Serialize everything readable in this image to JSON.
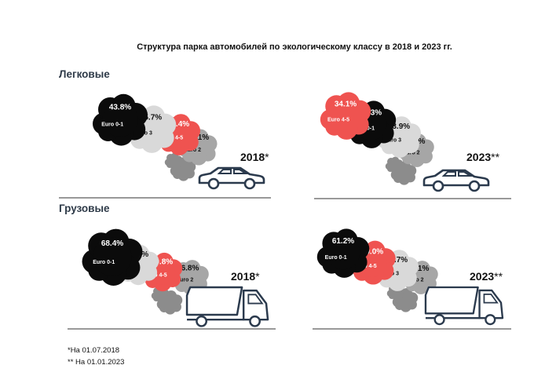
{
  "title": "Структура парка автомобилей по экологическому классу в 2018 и 2023 гг.",
  "sections": [
    {
      "label": "Легковые"
    },
    {
      "label": "Грузовые"
    }
  ],
  "colors": {
    "Euro 0-1": "#0b0b0b",
    "Euro 3": "#d9d9d9",
    "Euro 4-5": "#ef5350",
    "Euro 2": "#a6a6a6",
    "exhaust": "#8c8c8c",
    "vehicle_stroke": "#2b3a4d"
  },
  "chart_data": [
    {
      "type": "pie",
      "group": "Легковые",
      "year": "2018",
      "mark": "*",
      "vehicle": "car-icon",
      "slices": [
        {
          "label": "Euro 0-1",
          "value": 43.8,
          "value_text": "43.8%"
        },
        {
          "label": "Euro 3",
          "value": 25.7,
          "value_text": "25.7%"
        },
        {
          "label": "Euro 4-5",
          "value": 20.4,
          "value_text": "20.4%"
        },
        {
          "label": "Euro 2",
          "value": 10.1,
          "value_text": "10.1%"
        }
      ]
    },
    {
      "type": "pie",
      "group": "Легковые",
      "year": "2023",
      "mark": "**",
      "vehicle": "car-icon",
      "slices": [
        {
          "label": "Euro 4-5",
          "value": 34.1,
          "value_text": "34.1%"
        },
        {
          "label": "Euro 0-1",
          "value": 33.3,
          "value_text": "33.3%"
        },
        {
          "label": "Euro 3",
          "value": 23.9,
          "value_text": "23.9%"
        },
        {
          "label": "Euro 2",
          "value": 8.7,
          "value_text": "8.7%"
        }
      ]
    },
    {
      "type": "pie",
      "group": "Грузовые",
      "year": "2018",
      "mark": "*",
      "vehicle": "truck-icon",
      "slices": [
        {
          "label": "Euro 0-1",
          "value": 68.4,
          "value_text": "68.4%"
        },
        {
          "label": "Euro 3",
          "value": 14.0,
          "value_text": "14.0%"
        },
        {
          "label": "Euro 4-5",
          "value": 10.8,
          "value_text": "10.8%"
        },
        {
          "label": "Euro 2",
          "value": 6.8,
          "value_text": "6.8%"
        }
      ]
    },
    {
      "type": "pie",
      "group": "Грузовые",
      "year": "2023",
      "mark": "**",
      "vehicle": "truck-icon",
      "slices": [
        {
          "label": "Euro 0-1",
          "value": 61.2,
          "value_text": "61.2%"
        },
        {
          "label": "Euro 4-5",
          "value": 20.0,
          "value_text": "20.0%"
        },
        {
          "label": "Euro 3",
          "value": 12.7,
          "value_text": "12.7%"
        },
        {
          "label": "Euro 2",
          "value": 6.1,
          "value_text": "6.1%"
        }
      ]
    }
  ],
  "footnotes": [
    "*На 01.07.2018",
    "** На 01.01.2023"
  ]
}
